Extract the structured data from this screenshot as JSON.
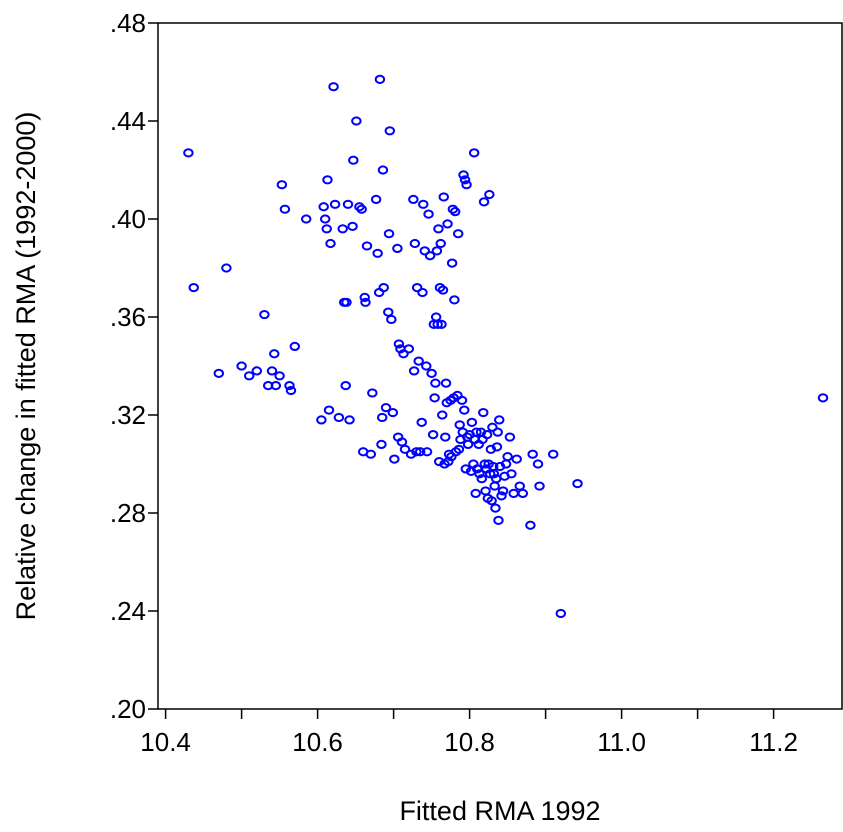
{
  "chart_data": {
    "type": "scatter",
    "title": "",
    "xlabel": "Fitted RMA 1992",
    "ylabel": "Relative change in fitted RMA (1992-2000)",
    "xlim": [
      10.39,
      11.29
    ],
    "ylim": [
      0.2,
      0.48
    ],
    "x_ticks": [
      10.4,
      10.6,
      10.8,
      11.0,
      11.2
    ],
    "x_tick_labels": [
      "10.4",
      "10.6",
      "10.8",
      "11.0",
      "11.2"
    ],
    "y_ticks": [
      0.2,
      0.24,
      0.28,
      0.32,
      0.36,
      0.4,
      0.44,
      0.48
    ],
    "y_tick_labels": [
      ".20",
      ".24",
      ".28",
      ".32",
      ".36",
      ".40",
      ".44",
      ".48"
    ],
    "grid": false,
    "legend": "none",
    "marker": "open-circle",
    "point_color": "#0000ff",
    "points": [
      [
        10.43,
        0.427
      ],
      [
        10.437,
        0.372
      ],
      [
        10.47,
        0.337
      ],
      [
        10.48,
        0.38
      ],
      [
        10.5,
        0.34
      ],
      [
        10.51,
        0.336
      ],
      [
        10.52,
        0.338
      ],
      [
        10.53,
        0.361
      ],
      [
        10.535,
        0.332
      ],
      [
        10.54,
        0.338
      ],
      [
        10.543,
        0.345
      ],
      [
        10.545,
        0.332
      ],
      [
        10.55,
        0.336
      ],
      [
        10.553,
        0.414
      ],
      [
        10.557,
        0.404
      ],
      [
        10.563,
        0.332
      ],
      [
        10.565,
        0.33
      ],
      [
        10.57,
        0.348
      ],
      [
        10.585,
        0.4
      ],
      [
        10.605,
        0.318
      ],
      [
        10.608,
        0.405
      ],
      [
        10.61,
        0.4
      ],
      [
        10.612,
        0.396
      ],
      [
        10.613,
        0.416
      ],
      [
        10.615,
        0.322
      ],
      [
        10.617,
        0.39
      ],
      [
        10.621,
        0.454
      ],
      [
        10.623,
        0.406
      ],
      [
        10.628,
        0.319
      ],
      [
        10.633,
        0.396
      ],
      [
        10.635,
        0.366
      ],
      [
        10.637,
        0.332
      ],
      [
        10.638,
        0.366
      ],
      [
        10.64,
        0.406
      ],
      [
        10.642,
        0.318
      ],
      [
        10.646,
        0.397
      ],
      [
        10.647,
        0.424
      ],
      [
        10.651,
        0.44
      ],
      [
        10.655,
        0.405
      ],
      [
        10.658,
        0.404
      ],
      [
        10.66,
        0.305
      ],
      [
        10.662,
        0.368
      ],
      [
        10.663,
        0.366
      ],
      [
        10.665,
        0.389
      ],
      [
        10.67,
        0.304
      ],
      [
        10.672,
        0.329
      ],
      [
        10.677,
        0.408
      ],
      [
        10.679,
        0.386
      ],
      [
        10.681,
        0.37
      ],
      [
        10.682,
        0.457
      ],
      [
        10.684,
        0.308
      ],
      [
        10.685,
        0.319
      ],
      [
        10.686,
        0.42
      ],
      [
        10.687,
        0.372
      ],
      [
        10.69,
        0.323
      ],
      [
        10.693,
        0.362
      ],
      [
        10.694,
        0.394
      ],
      [
        10.695,
        0.436
      ],
      [
        10.697,
        0.359
      ],
      [
        10.699,
        0.321
      ],
      [
        10.701,
        0.302
      ],
      [
        10.705,
        0.388
      ],
      [
        10.706,
        0.311
      ],
      [
        10.707,
        0.349
      ],
      [
        10.709,
        0.347
      ],
      [
        10.711,
        0.309
      ],
      [
        10.713,
        0.345
      ],
      [
        10.715,
        0.306
      ],
      [
        10.72,
        0.347
      ],
      [
        10.723,
        0.304
      ],
      [
        10.726,
        0.408
      ],
      [
        10.727,
        0.338
      ],
      [
        10.728,
        0.39
      ],
      [
        10.73,
        0.305
      ],
      [
        10.731,
        0.372
      ],
      [
        10.733,
        0.342
      ],
      [
        10.735,
        0.305
      ],
      [
        10.737,
        0.317
      ],
      [
        10.738,
        0.37
      ],
      [
        10.739,
        0.406
      ],
      [
        10.741,
        0.387
      ],
      [
        10.743,
        0.34
      ],
      [
        10.744,
        0.305
      ],
      [
        10.746,
        0.402
      ],
      [
        10.748,
        0.385
      ],
      [
        10.75,
        0.337
      ],
      [
        10.752,
        0.312
      ],
      [
        10.753,
        0.357
      ],
      [
        10.754,
        0.327
      ],
      [
        10.755,
        0.333
      ],
      [
        10.756,
        0.36
      ],
      [
        10.757,
        0.387
      ],
      [
        10.758,
        0.357
      ],
      [
        10.759,
        0.396
      ],
      [
        10.76,
        0.301
      ],
      [
        10.761,
        0.372
      ],
      [
        10.762,
        0.39
      ],
      [
        10.763,
        0.357
      ],
      [
        10.764,
        0.32
      ],
      [
        10.765,
        0.371
      ],
      [
        10.766,
        0.409
      ],
      [
        10.767,
        0.3
      ],
      [
        10.768,
        0.311
      ],
      [
        10.769,
        0.333
      ],
      [
        10.77,
        0.325
      ],
      [
        10.771,
        0.398
      ],
      [
        10.772,
        0.301
      ],
      [
        10.773,
        0.304
      ],
      [
        10.775,
        0.326
      ],
      [
        10.776,
        0.303
      ],
      [
        10.777,
        0.382
      ],
      [
        10.778,
        0.404
      ],
      [
        10.779,
        0.327
      ],
      [
        10.78,
        0.367
      ],
      [
        10.781,
        0.403
      ],
      [
        10.782,
        0.305
      ],
      [
        10.784,
        0.328
      ],
      [
        10.785,
        0.394
      ],
      [
        10.786,
        0.306
      ],
      [
        10.787,
        0.316
      ],
      [
        10.788,
        0.31
      ],
      [
        10.79,
        0.326
      ],
      [
        10.791,
        0.313
      ],
      [
        10.792,
        0.418
      ],
      [
        10.793,
        0.322
      ],
      [
        10.794,
        0.416
      ],
      [
        10.795,
        0.298
      ],
      [
        10.796,
        0.414
      ],
      [
        10.797,
        0.311
      ],
      [
        10.798,
        0.308
      ],
      [
        10.8,
        0.312
      ],
      [
        10.802,
        0.297
      ],
      [
        10.803,
        0.317
      ],
      [
        10.805,
        0.3
      ],
      [
        10.806,
        0.427
      ],
      [
        10.807,
        0.31
      ],
      [
        10.808,
        0.288
      ],
      [
        10.809,
        0.313
      ],
      [
        10.81,
        0.298
      ],
      [
        10.812,
        0.308
      ],
      [
        10.813,
        0.296
      ],
      [
        10.815,
        0.313
      ],
      [
        10.816,
        0.294
      ],
      [
        10.817,
        0.31
      ],
      [
        10.818,
        0.321
      ],
      [
        10.819,
        0.407
      ],
      [
        10.82,
        0.3
      ],
      [
        10.821,
        0.289
      ],
      [
        10.822,
        0.298
      ],
      [
        10.823,
        0.312
      ],
      [
        10.824,
        0.286
      ],
      [
        10.825,
        0.3
      ],
      [
        10.826,
        0.41
      ],
      [
        10.827,
        0.296
      ],
      [
        10.828,
        0.306
      ],
      [
        10.829,
        0.285
      ],
      [
        10.83,
        0.315
      ],
      [
        10.831,
        0.299
      ],
      [
        10.832,
        0.296
      ],
      [
        10.833,
        0.291
      ],
      [
        10.834,
        0.282
      ],
      [
        10.835,
        0.294
      ],
      [
        10.836,
        0.307
      ],
      [
        10.837,
        0.313
      ],
      [
        10.838,
        0.277
      ],
      [
        10.839,
        0.318
      ],
      [
        10.84,
        0.299
      ],
      [
        10.842,
        0.287
      ],
      [
        10.844,
        0.289
      ],
      [
        10.846,
        0.295
      ],
      [
        10.848,
        0.3
      ],
      [
        10.85,
        0.303
      ],
      [
        10.853,
        0.311
      ],
      [
        10.855,
        0.296
      ],
      [
        10.858,
        0.288
      ],
      [
        10.862,
        0.302
      ],
      [
        10.866,
        0.291
      ],
      [
        10.87,
        0.288
      ],
      [
        10.88,
        0.275
      ],
      [
        10.883,
        0.304
      ],
      [
        10.89,
        0.3
      ],
      [
        10.892,
        0.291
      ],
      [
        10.91,
        0.304
      ],
      [
        10.92,
        0.239
      ],
      [
        10.942,
        0.292
      ],
      [
        11.265,
        0.327
      ]
    ]
  }
}
